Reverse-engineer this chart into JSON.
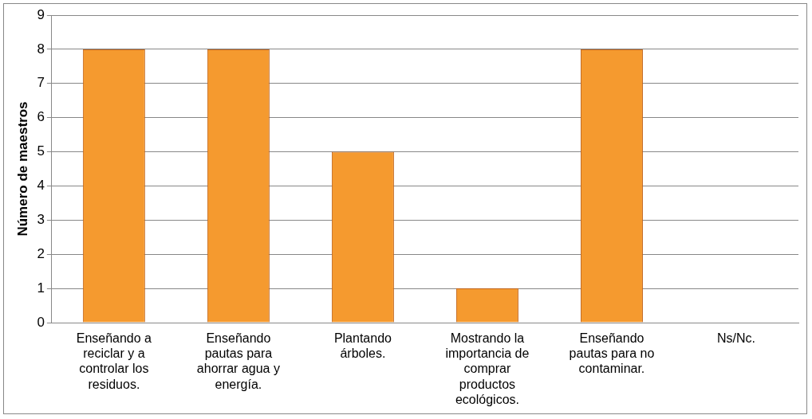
{
  "chart_data": {
    "type": "bar",
    "ylabel": "Número de maestros",
    "categories": [
      "Enseñando a reciclar y a controlar los residuos.",
      "Enseñando pautas para ahorrar agua y energía.",
      "Plantando árboles.",
      "Mostrando la importancia de comprar productos ecológicos.",
      "Enseñando pautas para no contaminar.",
      "Ns/Nc."
    ],
    "values": [
      8,
      8,
      5,
      1,
      8,
      0
    ],
    "color": "#f59a2f",
    "ylim": [
      0,
      9
    ],
    "yticks": [
      0,
      1,
      2,
      3,
      4,
      5,
      6,
      7,
      8,
      9
    ],
    "grid": "y",
    "legend": false
  }
}
